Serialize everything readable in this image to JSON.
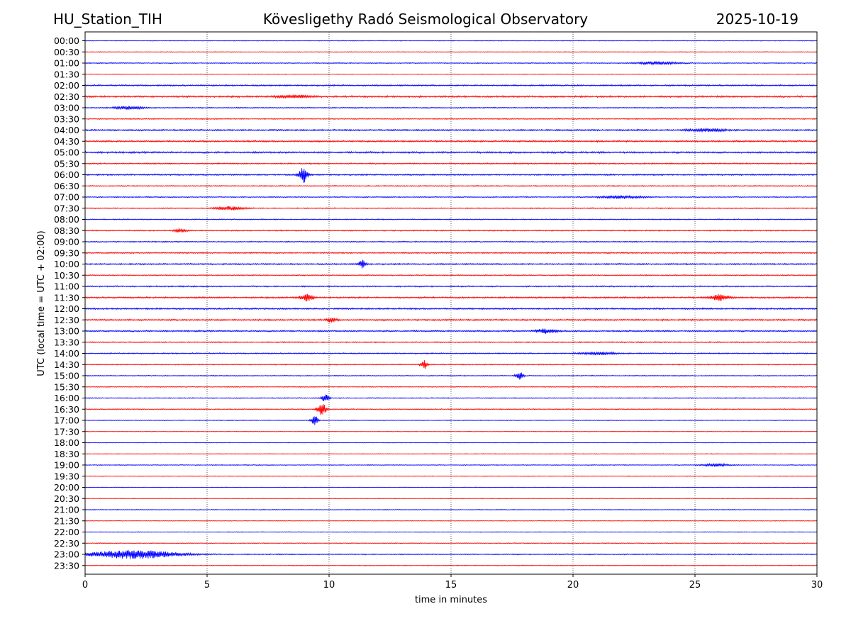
{
  "header": {
    "station": "HU_Station_TIH",
    "observatory": "Kövesligethy Radó Seismological Observatory",
    "date": "2025-10-19"
  },
  "chart_data": {
    "type": "line",
    "title": "Kövesligethy Radó Seismological Observatory",
    "xlabel": "time in minutes",
    "ylabel": "UTC (local time = UTC + 02:00)",
    "xlim": [
      0,
      30
    ],
    "x_ticks": [
      0,
      5,
      10,
      15,
      20,
      25,
      30
    ],
    "x_tick_labels": [
      "0",
      "5",
      "10",
      "15",
      "20",
      "25",
      "30"
    ],
    "grid": "vertical dotted lines at 5-minute intervals",
    "trace_colors": [
      "#0000ff",
      "#ff0000"
    ],
    "row_labels": [
      "00:00",
      "00:30",
      "01:00",
      "01:30",
      "02:00",
      "02:30",
      "03:00",
      "03:30",
      "04:00",
      "04:30",
      "05:00",
      "05:30",
      "06:00",
      "06:30",
      "07:00",
      "07:30",
      "08:00",
      "08:30",
      "09:00",
      "09:30",
      "10:00",
      "10:30",
      "11:00",
      "11:30",
      "12:00",
      "12:30",
      "13:00",
      "13:30",
      "14:00",
      "14:30",
      "15:00",
      "15:30",
      "16:00",
      "16:30",
      "17:00",
      "17:30",
      "18:00",
      "18:30",
      "19:00",
      "19:30",
      "20:00",
      "20:30",
      "21:00",
      "21:30",
      "22:00",
      "22:30",
      "23:00",
      "23:30"
    ],
    "noise_level": [
      0.6,
      0.5,
      0.7,
      0.5,
      1.1,
      1.3,
      0.8,
      0.8,
      1.2,
      1.2,
      1.3,
      1.0,
      1.1,
      0.8,
      0.8,
      0.8,
      0.8,
      0.9,
      0.9,
      1.0,
      1.1,
      0.8,
      1.0,
      1.2,
      1.2,
      1.2,
      1.1,
      0.9,
      0.9,
      0.8,
      0.7,
      0.7,
      0.7,
      0.7,
      0.6,
      0.5,
      0.5,
      0.5,
      0.6,
      0.5,
      0.5,
      0.5,
      0.6,
      0.5,
      0.5,
      0.6,
      0.8,
      0.6
    ],
    "events": [
      {
        "row": "01:00",
        "minute": 23.5,
        "amplitude": 2.0,
        "duration": 1.2
      },
      {
        "row": "02:30",
        "minute": 8.5,
        "amplitude": 2.0,
        "duration": 1.0
      },
      {
        "row": "03:00",
        "minute": 1.8,
        "amplitude": 2.0,
        "duration": 0.8
      },
      {
        "row": "04:00",
        "minute": 25.5,
        "amplitude": 2.0,
        "duration": 1.0
      },
      {
        "row": "06:00",
        "minute": 8.95,
        "amplitude": 11.0,
        "duration": 0.25
      },
      {
        "row": "07:00",
        "minute": 22.0,
        "amplitude": 2.0,
        "duration": 1.2
      },
      {
        "row": "07:30",
        "minute": 5.9,
        "amplitude": 2.5,
        "duration": 0.8
      },
      {
        "row": "08:30",
        "minute": 3.9,
        "amplitude": 3.0,
        "duration": 0.3
      },
      {
        "row": "10:00",
        "minute": 11.35,
        "amplitude": 6.0,
        "duration": 0.2
      },
      {
        "row": "11:30",
        "minute": 9.1,
        "amplitude": 5.0,
        "duration": 0.4
      },
      {
        "row": "11:30",
        "minute": 26.0,
        "amplitude": 4.0,
        "duration": 0.5
      },
      {
        "row": "12:30",
        "minute": 10.1,
        "amplitude": 3.0,
        "duration": 0.3
      },
      {
        "row": "13:00",
        "minute": 18.9,
        "amplitude": 3.0,
        "duration": 0.6
      },
      {
        "row": "14:00",
        "minute": 21.0,
        "amplitude": 2.0,
        "duration": 1.0
      },
      {
        "row": "14:30",
        "minute": 13.9,
        "amplitude": 6.0,
        "duration": 0.2
      },
      {
        "row": "15:00",
        "minute": 17.8,
        "amplitude": 6.0,
        "duration": 0.2
      },
      {
        "row": "16:00",
        "minute": 9.85,
        "amplitude": 6.0,
        "duration": 0.2
      },
      {
        "row": "16:30",
        "minute": 9.7,
        "amplitude": 10.0,
        "duration": 0.25
      },
      {
        "row": "17:00",
        "minute": 9.4,
        "amplitude": 7.0,
        "duration": 0.2
      },
      {
        "row": "19:00",
        "minute": 25.9,
        "amplitude": 2.0,
        "duration": 0.8
      },
      {
        "row": "23:00",
        "minute": 2.0,
        "amplitude": 6.0,
        "duration": 2.5
      }
    ]
  }
}
